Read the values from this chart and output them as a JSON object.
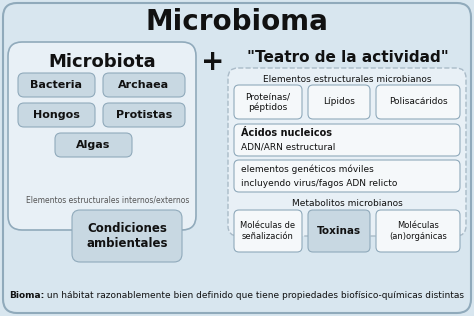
{
  "title": "Microbioma",
  "subtitle_left": "Microbiota",
  "subtitle_plus": "+",
  "subtitle_right": "\"Teatro de la actividad\"",
  "footer_bold": "Bioma:",
  "footer_rest": " un hábitat razonablemente bien definido que tiene propiedades biofísico-químicas distintas",
  "estructurales_label": "Elementos estructurales microbianos",
  "internos_label": "Elementos estructurales internos/externos",
  "condiciones_label": "Condiciones\nambientales",
  "metabolitos_label": "Metabolitos microbianos",
  "bg_outer": "#d8e6ef",
  "bg_section": "#e8f0f6",
  "bg_white": "#f5f8fa",
  "box_gray": "#c8d8e2",
  "border_color": "#90aabb",
  "border_dashed": "#aabbc8",
  "text_dark": "#111111",
  "text_gray": "#555555"
}
